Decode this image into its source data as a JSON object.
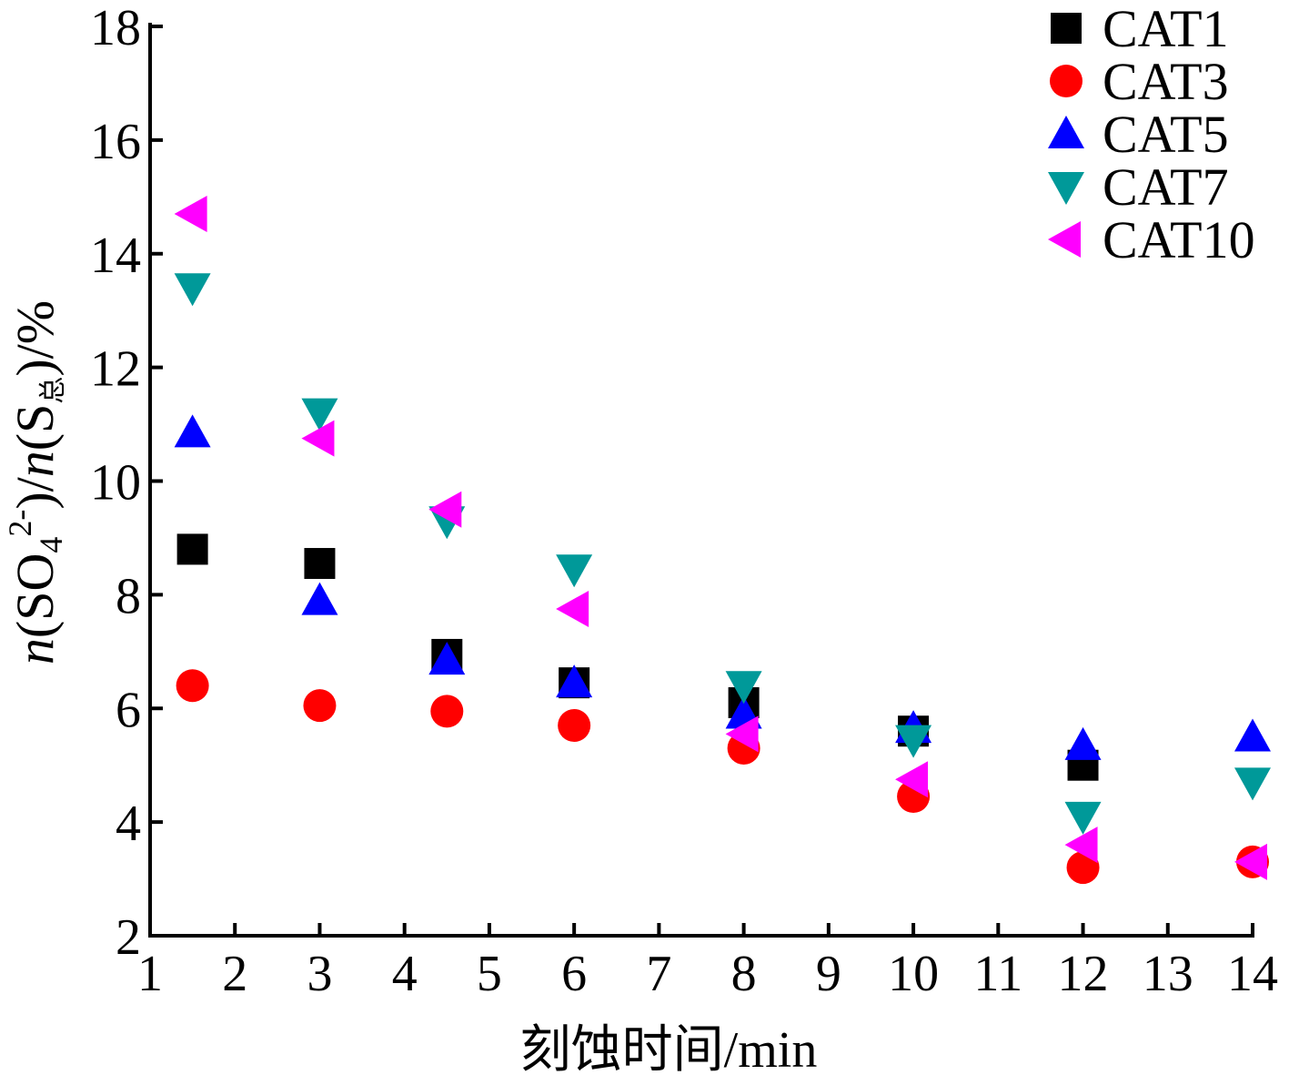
{
  "chart_data": {
    "type": "scatter",
    "title": "",
    "xlabel": "刻蚀时间/min",
    "ylabel_parts": {
      "n1": "n",
      "so4_open": "(SO",
      "sub4": "4",
      "sup2": "2-",
      "close_slash": ")/",
      "n2": "n",
      "s_open": "(S",
      "sub_zong": "总",
      "close_pct": ")/%"
    },
    "xlim": [
      1,
      14
    ],
    "ylim": [
      2,
      18
    ],
    "xticks": [
      "1",
      "2",
      "3",
      "4",
      "5",
      "6",
      "7",
      "8",
      "9",
      "10",
      "11",
      "12",
      "13",
      "14"
    ],
    "yticks": [
      "2",
      "4",
      "6",
      "8",
      "10",
      "12",
      "14",
      "16",
      "18"
    ],
    "grid": false,
    "legend_position": "top-right",
    "series": [
      {
        "name": "CAT1",
        "marker": "square",
        "color": "#000000",
        "points": [
          [
            1.5,
            8.8
          ],
          [
            3,
            8.55
          ],
          [
            4.5,
            6.95
          ],
          [
            6,
            6.45
          ],
          [
            8,
            6.1
          ],
          [
            10,
            5.6
          ],
          [
            12,
            5.0
          ]
        ]
      },
      {
        "name": "CAT3",
        "marker": "circle",
        "color": "#ff0000",
        "points": [
          [
            1.5,
            6.4
          ],
          [
            3,
            6.05
          ],
          [
            4.5,
            5.95
          ],
          [
            6,
            5.7
          ],
          [
            8,
            5.3
          ],
          [
            10,
            4.45
          ],
          [
            12,
            3.2
          ],
          [
            14,
            3.3
          ]
        ]
      },
      {
        "name": "CAT5",
        "marker": "triangle-up",
        "color": "#0000ff",
        "points": [
          [
            1.5,
            10.85
          ],
          [
            3,
            7.9
          ],
          [
            4.5,
            6.85
          ],
          [
            6,
            6.45
          ],
          [
            8,
            5.9
          ],
          [
            10,
            5.65
          ],
          [
            12,
            5.35
          ],
          [
            14,
            5.5
          ]
        ]
      },
      {
        "name": "CAT7",
        "marker": "triangle-down",
        "color": "#009999",
        "points": [
          [
            1.5,
            13.4
          ],
          [
            3,
            11.2
          ],
          [
            4.5,
            9.3
          ],
          [
            6,
            8.45
          ],
          [
            8,
            6.4
          ],
          [
            10,
            5.45
          ],
          [
            12,
            4.1
          ],
          [
            14,
            4.7
          ]
        ]
      },
      {
        "name": "CAT10",
        "marker": "triangle-left",
        "color": "#ff00ff",
        "points": [
          [
            1.5,
            14.7
          ],
          [
            3,
            10.75
          ],
          [
            4.5,
            9.5
          ],
          [
            6,
            7.75
          ],
          [
            8,
            5.55
          ],
          [
            10,
            4.75
          ],
          [
            12,
            3.6
          ],
          [
            14,
            3.3
          ]
        ]
      }
    ]
  }
}
